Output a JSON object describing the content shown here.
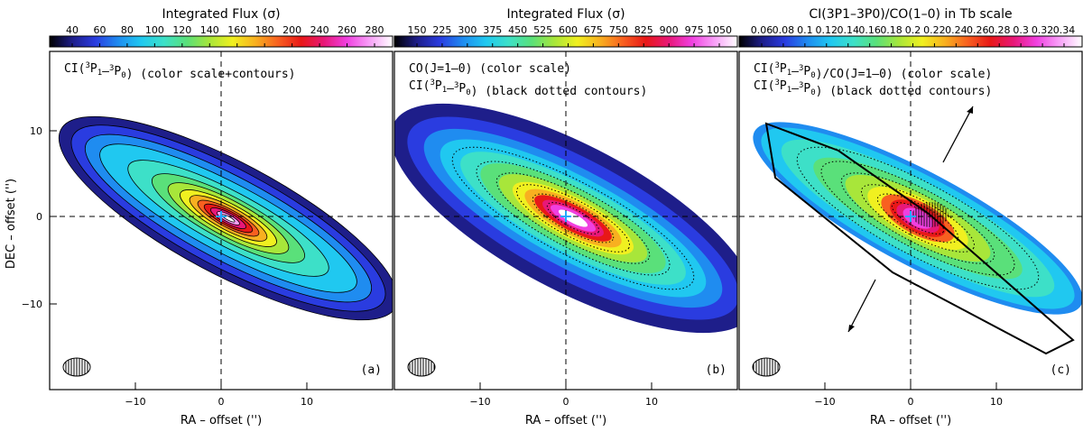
{
  "figure": {
    "axis_labels": {
      "x": "RA – offset ('')",
      "y": "DEC – offset ('')"
    },
    "x_ticks": [
      "10",
      "0",
      "−10"
    ],
    "y_ticks": [
      "10",
      "0",
      "−10"
    ],
    "panels": [
      {
        "id": "a",
        "panel_label": "(a)",
        "colorbar_title": "Integrated Flux (σ)",
        "colorbar_ticks": [
          "40",
          "60",
          "80",
          "100",
          "120",
          "140",
          "160",
          "180",
          "200",
          "240",
          "260",
          "280"
        ],
        "caption_line1": "CI(3P1–3P0) (color scale+contours)",
        "caption_line2": ""
      },
      {
        "id": "b",
        "panel_label": "(b)",
        "colorbar_title": "Integrated Flux (σ)",
        "colorbar_ticks": [
          "150",
          "225",
          "300",
          "375",
          "450",
          "525",
          "600",
          "675",
          "750",
          "825",
          "900",
          "975",
          "1050"
        ],
        "caption_line1": "CO(J=1–0) (color scale)",
        "caption_line2": "CI(3P1–3P0) (black dotted contours)"
      },
      {
        "id": "c",
        "panel_label": "(c)",
        "colorbar_title": "CI(3P1–3P0)/CO(1–0) in Tb scale",
        "colorbar_ticks": [
          "0.06",
          "0.08",
          "0.1",
          "0.12",
          "0.14",
          "0.16",
          "0.18",
          "0.2",
          "0.22",
          "0.24",
          "0.26",
          "0.28",
          "0.3",
          "0.32",
          "0.34"
        ],
        "caption_line1": "CI(3P1–3P0)/CO(J=1–0) (color scale)",
        "caption_line2": "CI(3P1–3P0) (black dotted contours)"
      }
    ]
  },
  "colors": {
    "palette": [
      "#000000",
      "#1e1e8a",
      "#2a3ce0",
      "#1f8cf0",
      "#20c8f0",
      "#3de0c8",
      "#5ae07a",
      "#a8e63a",
      "#f0f020",
      "#f8b020",
      "#f86020",
      "#e81818",
      "#e81878",
      "#f040e0",
      "#f8a0f8",
      "#ffffff"
    ]
  }
}
